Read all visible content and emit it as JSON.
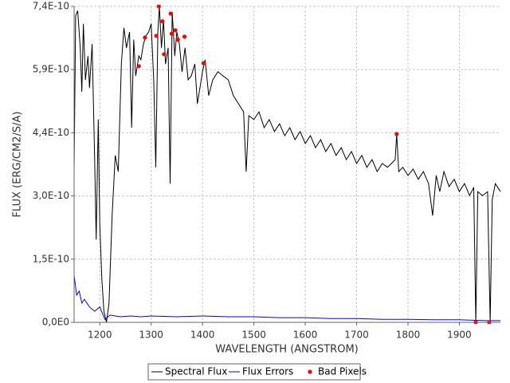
{
  "chart_data": {
    "type": "line",
    "xlabel": "WAVELENGTH (ANGSTROM)",
    "ylabel": "FLUX (ERG/CM2/S/A)",
    "xlim": [
      1150,
      1980
    ],
    "xticks": [
      1200,
      1300,
      1400,
      1500,
      1600,
      1700,
      1800,
      1900
    ],
    "ylim": [
      0,
      7.4e-10
    ],
    "yticks": [
      {
        "value": 0,
        "label": "0,0E0"
      },
      {
        "value": 1.48e-10,
        "label": "1,5E-10"
      },
      {
        "value": 2.96e-10,
        "label": "3,0E-10"
      },
      {
        "value": 4.44e-10,
        "label": "4,4E-10"
      },
      {
        "value": 5.92e-10,
        "label": "5,9E-10"
      },
      {
        "value": 7.4e-10,
        "label": "7,4E-10"
      }
    ],
    "grid": true,
    "legend": "bottom",
    "series": [
      {
        "name": "Spectral Flux",
        "color": "#000000",
        "x": [
          1150,
          1153,
          1157,
          1162,
          1165,
          1168,
          1172,
          1177,
          1180,
          1185,
          1190,
          1193,
          1197,
          1200,
          1204,
          1208,
          1213,
          1218,
          1224,
          1230,
          1236,
          1242,
          1247,
          1252,
          1258,
          1262,
          1266,
          1270,
          1276,
          1280,
          1285,
          1290,
          1295,
          1300,
          1305,
          1309,
          1313,
          1316,
          1320,
          1324,
          1328,
          1333,
          1337,
          1341,
          1346,
          1350,
          1355,
          1360,
          1366,
          1372,
          1378,
          1385,
          1390,
          1395,
          1400,
          1405,
          1412,
          1420,
          1430,
          1440,
          1450,
          1460,
          1470,
          1480,
          1485,
          1490,
          1500,
          1510,
          1520,
          1530,
          1540,
          1550,
          1560,
          1570,
          1580,
          1590,
          1600,
          1610,
          1620,
          1630,
          1640,
          1650,
          1660,
          1670,
          1680,
          1690,
          1700,
          1710,
          1720,
          1730,
          1740,
          1750,
          1760,
          1775,
          1778,
          1782,
          1790,
          1800,
          1810,
          1820,
          1830,
          1840,
          1848,
          1855,
          1862,
          1870,
          1880,
          1890,
          1900,
          1910,
          1920,
          1928,
          1932,
          1936,
          1945,
          1955,
          1960,
          1964,
          1970,
          1980
        ],
        "values": [
          3.53e-10,
          7.18e-10,
          7.3e-10,
          6.43e-10,
          5.4e-10,
          6.99e-10,
          5.68e-10,
          6.24e-10,
          5.49e-10,
          6.52e-10,
          3.81e-10,
          1.94e-10,
          4.75e-10,
          2.32e-10,
          1.01e-10,
          2.6e-11,
          0,
          4.5e-11,
          2.5e-10,
          3.91e-10,
          3.53e-10,
          6.05e-10,
          6.9e-10,
          6.43e-10,
          6.8e-10,
          4.56e-10,
          6.62e-10,
          5.77e-10,
          6.24e-10,
          6.15e-10,
          6.52e-10,
          6.71e-10,
          6.8e-10,
          6.99e-10,
          5.68e-10,
          3.63e-10,
          6.8e-10,
          7.4e-10,
          6.43e-10,
          7.08e-10,
          6.05e-10,
          6.43e-10,
          3.25e-10,
          7.27e-10,
          6.24e-10,
          6.8e-10,
          6.52e-10,
          5.87e-10,
          6.43e-10,
          5.68e-10,
          5.77e-10,
          6.05e-10,
          5.12e-10,
          5.49e-10,
          5.87e-10,
          6.15e-10,
          5.31e-10,
          5.68e-10,
          5.87e-10,
          5.77e-10,
          5.68e-10,
          5.31e-10,
          5.12e-10,
          4.93e-10,
          3.53e-10,
          4.84e-10,
          4.75e-10,
          4.93e-10,
          4.56e-10,
          4.75e-10,
          4.47e-10,
          4.65e-10,
          4.37e-10,
          4.56e-10,
          4.28e-10,
          4.47e-10,
          4.19e-10,
          4.37e-10,
          4.09e-10,
          4.28e-10,
          4e-10,
          4.19e-10,
          3.91e-10,
          4.09e-10,
          3.81e-10,
          4e-10,
          3.72e-10,
          3.91e-10,
          3.63e-10,
          3.81e-10,
          3.53e-10,
          3.72e-10,
          3.63e-10,
          3.81e-10,
          4.41e-10,
          3.53e-10,
          3.63e-10,
          3.44e-10,
          3.59e-10,
          3.35e-10,
          3.53e-10,
          3.25e-10,
          2.5e-10,
          3.44e-10,
          3.06e-10,
          3.53e-10,
          3.18e-10,
          3.35e-10,
          3.06e-10,
          3.25e-10,
          2.97e-10,
          3.16e-10,
          0,
          3.06e-10,
          2.97e-10,
          3.06e-10,
          0,
          2.88e-10,
          3.25e-10,
          3.06e-10
        ]
      },
      {
        "name": "Flux Errors",
        "color": "#0000ff",
        "x": [
          1150,
          1155,
          1160,
          1165,
          1170,
          1180,
          1190,
          1200,
          1210,
          1220,
          1240,
          1260,
          1280,
          1300,
          1350,
          1400,
          1450,
          1500,
          1550,
          1600,
          1650,
          1700,
          1750,
          1800,
          1850,
          1900,
          1950,
          1980
        ],
        "values": [
          1.1e-10,
          6.4e-11,
          7.3e-11,
          4.5e-11,
          5.4e-11,
          3.6e-11,
          2.6e-11,
          3.6e-11,
          7e-12,
          1.7e-11,
          1.3e-11,
          1.5e-11,
          1.3e-11,
          1.5e-11,
          1.3e-11,
          1.5e-11,
          1.3e-11,
          1.3e-11,
          1.1e-11,
          1.1e-11,
          9e-12,
          9e-12,
          7e-12,
          7e-12,
          6e-12,
          6e-12,
          4e-12,
          4e-12
        ]
      },
      {
        "name": "Bad Pixels",
        "color": "#ff0000",
        "marker": "circle",
        "line": false,
        "x": [
          1276,
          1288,
          1310,
          1315,
          1322,
          1325,
          1338,
          1340,
          1347,
          1352,
          1365,
          1402,
          1778,
          1932,
          1958
        ],
        "values": [
          6e-10,
          6.67e-10,
          6.71e-10,
          7.4e-10,
          7.05e-10,
          6.28e-10,
          7.23e-10,
          6.76e-10,
          6.84e-10,
          6.62e-10,
          6.69e-10,
          6.07e-10,
          4.41e-10,
          0,
          0
        ]
      }
    ]
  }
}
